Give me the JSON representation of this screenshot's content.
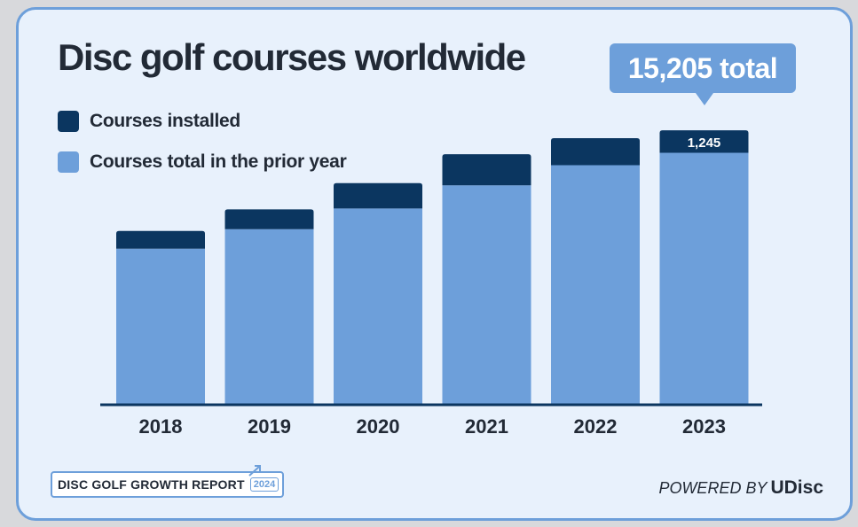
{
  "title": "Disc golf courses worldwide",
  "callout": "15,205 total",
  "legend": [
    {
      "label": "Courses installed",
      "color": "#0b3660"
    },
    {
      "label": "Courses total in the prior year",
      "color": "#6d9fda"
    }
  ],
  "chart_data": {
    "type": "bar",
    "stacked": true,
    "categories": [
      "2018",
      "2019",
      "2020",
      "2021",
      "2022",
      "2023"
    ],
    "series": [
      {
        "name": "Courses total in the prior year",
        "color": "#6d9fda",
        "values": [
          8630,
          9710,
          10860,
          12150,
          13270,
          13960
        ]
      },
      {
        "name": "Courses installed",
        "color": "#0b3660",
        "values": [
          980,
          1100,
          1410,
          1730,
          1500,
          1245
        ]
      }
    ],
    "data_labels": {
      "2023": "1,245"
    },
    "ylim": [
      0,
      16000
    ],
    "legend_position": "top-left"
  },
  "footer": {
    "report": "DISC GOLF GROWTH REPORT",
    "report_year": "2024",
    "powered_by": "POWERED BY",
    "brand": "UDisc"
  }
}
